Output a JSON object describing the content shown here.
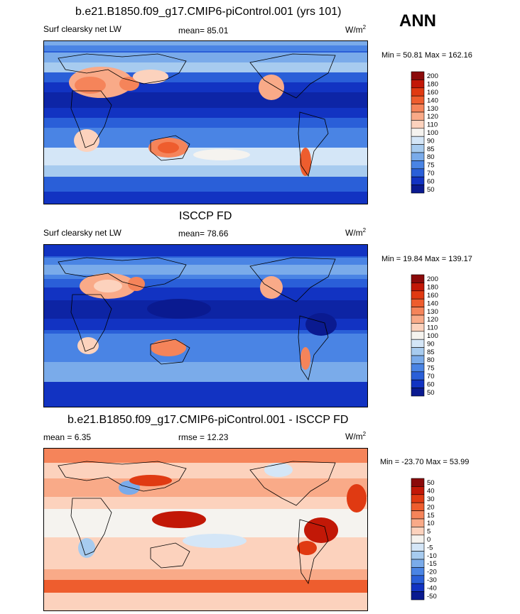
{
  "season": "ANN",
  "chart_data": [
    {
      "type": "heatmap",
      "title": "b.e21.B1850.f09_g17.CMIP6-piControl.001 (yrs 101)",
      "variable": "Surf clearsky net LW",
      "mean_label": "mean=",
      "mean": "85.01",
      "units": "W/m",
      "units_sup": "2",
      "min_label": "Min =",
      "min": "50.81",
      "max_label": "Max =",
      "max": "162.16",
      "levels": [
        "200",
        "180",
        "160",
        "140",
        "130",
        "120",
        "110",
        "100",
        "90",
        "85",
        "80",
        "75",
        "70",
        "60",
        "50"
      ],
      "colors": [
        "#8b0a0a",
        "#c21807",
        "#e03a12",
        "#ee5d2e",
        "#f5845a",
        "#f9aa88",
        "#fcd2bd",
        "#f5f3ef",
        "#d4e6f7",
        "#a7cbef",
        "#7aabea",
        "#4a84e4",
        "#2a5fd8",
        "#1233c2",
        "#0a1a90"
      ]
    },
    {
      "type": "heatmap",
      "title": "ISCCP FD",
      "variable": "Surf clearsky net LW",
      "mean_label": "mean=",
      "mean": "78.66",
      "units": "W/m",
      "units_sup": "2",
      "min_label": "Min =",
      "min": "19.84",
      "max_label": "Max =",
      "max": "139.17",
      "levels": [
        "200",
        "180",
        "160",
        "140",
        "130",
        "120",
        "110",
        "100",
        "90",
        "85",
        "80",
        "75",
        "70",
        "60",
        "50"
      ],
      "colors": [
        "#8b0a0a",
        "#c21807",
        "#e03a12",
        "#ee5d2e",
        "#f5845a",
        "#f9aa88",
        "#fcd2bd",
        "#f5f3ef",
        "#d4e6f7",
        "#a7cbef",
        "#7aabea",
        "#4a84e4",
        "#2a5fd8",
        "#1233c2",
        "#0a1a90"
      ]
    },
    {
      "type": "heatmap",
      "title": "b.e21.B1850.f09_g17.CMIP6-piControl.001 - ISCCP FD",
      "mean_label": "mean =",
      "mean": "6.35",
      "rmse_label": "rmse =",
      "rmse": "12.23",
      "units": "W/m",
      "units_sup": "2",
      "min_label": "Min =",
      "min": "-23.70",
      "max_label": "Max =",
      "max": "53.99",
      "levels": [
        "50",
        "40",
        "30",
        "20",
        "15",
        "10",
        "5",
        "0",
        "-5",
        "-10",
        "-15",
        "-20",
        "-30",
        "-40",
        "-50"
      ],
      "colors": [
        "#8b0a0a",
        "#c21807",
        "#e03a12",
        "#ee5d2e",
        "#f5845a",
        "#f9aa88",
        "#fcd2bd",
        "#f5f3ef",
        "#d4e6f7",
        "#a7cbef",
        "#7aabea",
        "#4a84e4",
        "#2a5fd8",
        "#1233c2",
        "#0a1a90"
      ]
    }
  ]
}
